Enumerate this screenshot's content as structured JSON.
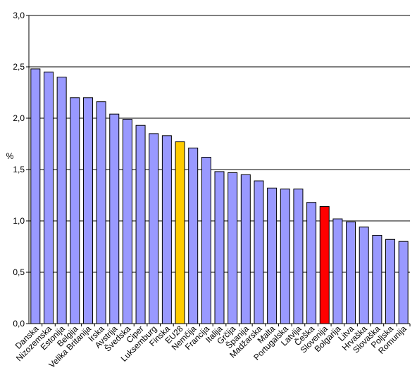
{
  "chart_data": {
    "type": "bar",
    "ylabel": "%",
    "ylim": [
      0,
      3
    ],
    "ytick_step": 0.5,
    "ytick_labels": [
      "0,0",
      "0,5",
      "1,0",
      "1,5",
      "2,0",
      "2,5",
      "3,0"
    ],
    "grid": true,
    "legend": "none",
    "categories": [
      "Danska",
      "Nizozemska",
      "Estonija",
      "Belgija",
      "Velika Britanija",
      "Irska",
      "Avstrija",
      "Švedska",
      "Ciper",
      "Luksemburg",
      "Finska",
      "EU28",
      "Nemčija",
      "Francija",
      "Italija",
      "Grčija",
      "Španija",
      "Madžarska",
      "Malta",
      "Portugalska",
      "Latvija",
      "Češka",
      "Slovenija",
      "Bolgarija",
      "Litva",
      "Hrvaška",
      "Slovaška",
      "Poljska",
      "Romunija"
    ],
    "values": [
      2.48,
      2.45,
      2.4,
      2.2,
      2.2,
      2.16,
      2.04,
      1.99,
      1.93,
      1.85,
      1.83,
      1.77,
      1.71,
      1.62,
      1.48,
      1.47,
      1.45,
      1.39,
      1.32,
      1.31,
      1.31,
      1.18,
      1.14,
      1.02,
      0.99,
      0.94,
      0.86,
      0.82,
      0.8
    ],
    "colors": {
      "default": "#9999ff",
      "highlights": {
        "EU28": "#ffcc00",
        "Slovenija": "#ff0000"
      },
      "outline": "#000000",
      "gridline": "#000000"
    }
  }
}
